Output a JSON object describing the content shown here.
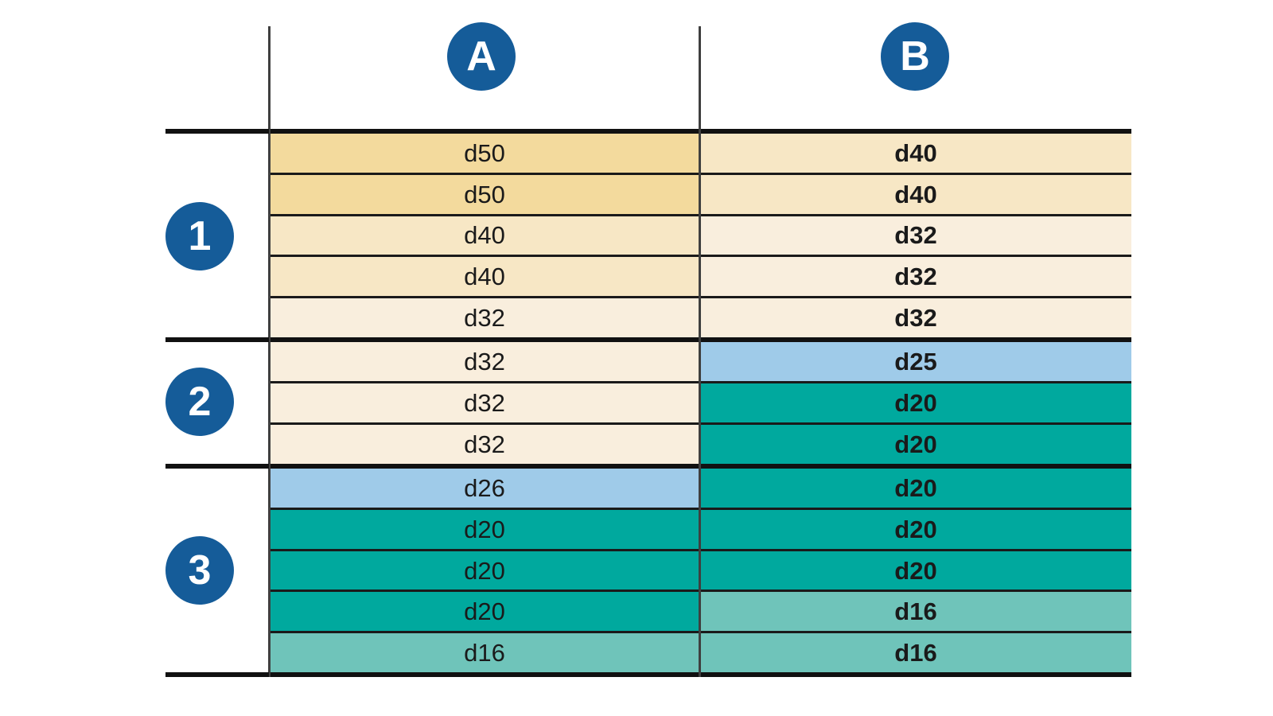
{
  "columns": [
    {
      "label": "A"
    },
    {
      "label": "B"
    }
  ],
  "groups": [
    {
      "label": "1",
      "rows": [
        {
          "a": "d50",
          "b": "d40"
        },
        {
          "a": "d50",
          "b": "d40"
        },
        {
          "a": "d40",
          "b": "d32"
        },
        {
          "a": "d40",
          "b": "d32"
        },
        {
          "a": "d32",
          "b": "d32"
        }
      ]
    },
    {
      "label": "2",
      "rows": [
        {
          "a": "d32",
          "b": "d25"
        },
        {
          "a": "d32",
          "b": "d20"
        },
        {
          "a": "d32",
          "b": "d20"
        }
      ]
    },
    {
      "label": "3",
      "rows": [
        {
          "a": "d26",
          "b": "d20"
        },
        {
          "a": "d20",
          "b": "d20"
        },
        {
          "a": "d20",
          "b": "d20"
        },
        {
          "a": "d20",
          "b": "d16"
        },
        {
          "a": "d16",
          "b": "d16"
        }
      ]
    }
  ],
  "value_colors": {
    "d50": "#f3da9d",
    "d40": "#f7e7c5",
    "d32": "#f9eedd",
    "d26": "#9fcbe9",
    "d25": "#9fcbe9",
    "d20": "#00a99e",
    "d16": "#6fc4ba"
  },
  "accent_colors": {
    "badge_blue": "#155c99",
    "rule_black": "#111111",
    "divider_gray": "#3f3f3f"
  }
}
